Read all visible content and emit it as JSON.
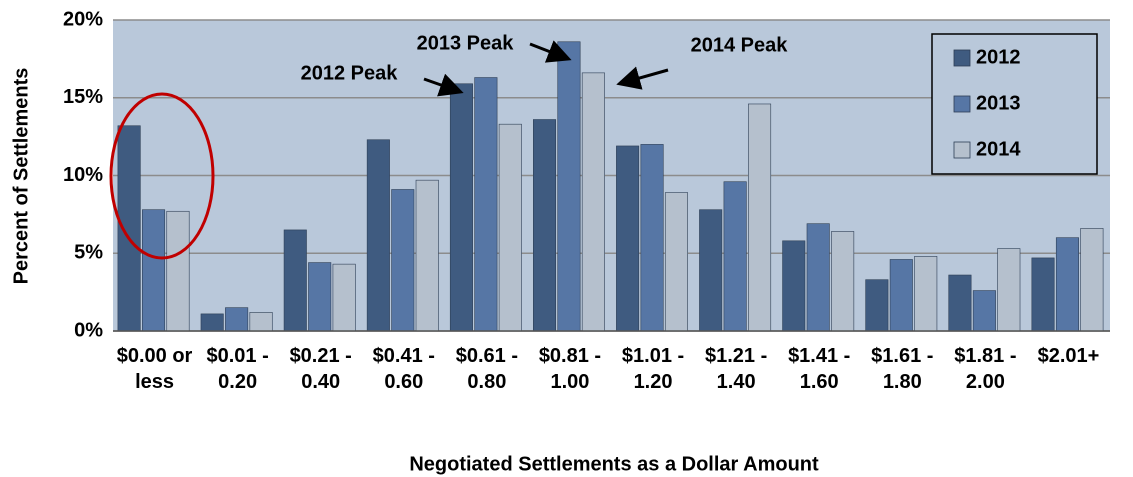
{
  "chart_data": {
    "type": "bar",
    "x_label": "Negotiated Settlements as a Dollar Amount",
    "y_label": "Percent of Settlements",
    "categories": [
      "$0.00 or less",
      "$0.01 - 0.20",
      "$0.21 - 0.40",
      "$0.41 - 0.60",
      "$0.61 - 0.80",
      "$0.81 - 1.00",
      "$1.01 - 1.20",
      "$1.21 - 1.40",
      "$1.41 - 1.60",
      "$1.61 - 1.80",
      "$1.81 - 2.00",
      "$2.01+"
    ],
    "series": [
      {
        "name": "2012",
        "color": "#3f5b80",
        "values": [
          13.2,
          1.1,
          6.5,
          12.3,
          15.9,
          13.6,
          11.9,
          7.8,
          5.8,
          3.3,
          3.6,
          4.7
        ]
      },
      {
        "name": "2013",
        "color": "#5676a5",
        "values": [
          7.8,
          1.5,
          4.4,
          9.1,
          16.3,
          18.6,
          12.0,
          9.6,
          6.9,
          4.6,
          2.6,
          6.0
        ]
      },
      {
        "name": "2014",
        "color": "#b5c0cd",
        "values": [
          7.7,
          1.2,
          4.3,
          9.7,
          13.3,
          16.6,
          8.9,
          14.6,
          6.4,
          4.8,
          5.3,
          6.6
        ]
      }
    ],
    "ylim": [
      0,
      20
    ],
    "yticks": [
      {
        "value": 0,
        "label": "0%"
      },
      {
        "value": 5,
        "label": "5%"
      },
      {
        "value": 10,
        "label": "10%"
      },
      {
        "value": 15,
        "label": "15%"
      },
      {
        "value": 20,
        "label": "20%"
      }
    ],
    "grid": true,
    "legend": "top-right",
    "annotations": [
      "2012 Peak",
      "2013 Peak",
      "2014 Peak"
    ]
  }
}
